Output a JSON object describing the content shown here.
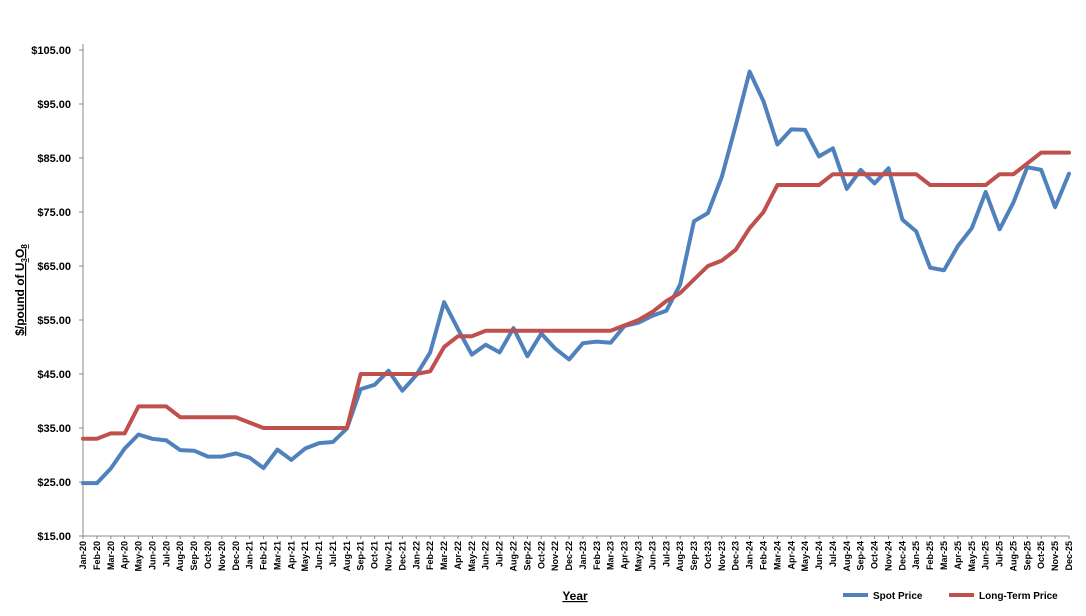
{
  "chart_data": {
    "type": "line",
    "title": "",
    "xlabel": "Year",
    "ylabel": {
      "prefix": "$/pound of U",
      "sub1": "3",
      "mid": "O",
      "sub2": "8"
    },
    "ylim": [
      15,
      105
    ],
    "ytick_values": [
      15,
      25,
      35,
      45,
      55,
      65,
      75,
      85,
      95,
      105
    ],
    "ytick_labels": [
      "$15.00",
      "$25.00",
      "$35.00",
      "$45.00",
      "$55.00",
      "$65.00",
      "$75.00",
      "$85.00",
      "$95.00",
      "$105.00"
    ],
    "grid": false,
    "legend_position": "bottom-right",
    "categories": [
      "Jan-20",
      "Feb-20",
      "Mar-20",
      "Apr-20",
      "May-20",
      "Jun-20",
      "Jul-20",
      "Aug-20",
      "Sep-20",
      "Oct-20",
      "Nov-20",
      "Dec-20",
      "Jan-21",
      "Feb-21",
      "Mar-21",
      "Apr-21",
      "May-21",
      "Jun-21",
      "Jul-21",
      "Aug-21",
      "Sep-21",
      "Oct-21",
      "Nov-21",
      "Dec-21",
      "Jan-22",
      "Feb-22",
      "Mar-22",
      "Apr-22",
      "May-22",
      "Jun-22",
      "Jul-22",
      "Aug-22",
      "Sep-22",
      "Oct-22",
      "Nov-22",
      "Dec-22",
      "Jan-23",
      "Feb-23",
      "Mar-23",
      "Apr-23",
      "May-23",
      "Jun-23",
      "Jul-23",
      "Aug-23",
      "Sep-23",
      "Oct-23",
      "Nov-23",
      "Dec-23",
      "Jan-24",
      "Feb-24",
      "Mar-24",
      "Apr-24",
      "May-24",
      "Jun-24",
      "Jul-24",
      "Aug-24",
      "Sep-24",
      "Oct-24",
      "Nov-24",
      "Dec-24",
      "Jan-25",
      "Feb-25",
      "Mar-25",
      "Apr-25",
      "May-25",
      "Jun-25",
      "Jul-25",
      "Aug-25",
      "Sep-25",
      "Oct-25",
      "Nov-25",
      "Dec-25"
    ],
    "series": [
      {
        "name": "Spot Price",
        "color": "#4f81bd",
        "values": [
          24.8,
          24.8,
          27.5,
          31.2,
          33.8,
          33,
          32.7,
          30.9,
          30.8,
          29.7,
          29.7,
          30.3,
          29.5,
          27.6,
          31,
          29.1,
          31.2,
          32.2,
          32.4,
          34.9,
          42.2,
          43,
          45.6,
          41.9,
          44.8,
          49,
          58.3,
          53.3,
          48.6,
          50.4,
          49,
          53.5,
          48.3,
          52.5,
          49.7,
          47.7,
          50.7,
          51,
          50.8,
          53.9,
          54.5,
          55.8,
          56.7,
          61.6,
          73.3,
          74.8,
          81.5,
          91,
          101,
          95.5,
          87.5,
          90.3,
          90.2,
          85.3,
          86.8,
          79.3,
          82.8,
          80.3,
          83.1,
          73.6,
          71.4,
          64.7,
          64.2,
          68.7,
          72,
          78.7,
          71.8,
          76.8,
          83.3,
          82.8,
          75.9,
          82.1
        ]
      },
      {
        "name": "Long-Term Price",
        "color": "#c0504d",
        "values": [
          33,
          33,
          34,
          34,
          39,
          39,
          39,
          37,
          37,
          37,
          37,
          37,
          36,
          35,
          35,
          35,
          35,
          35,
          35,
          35,
          45,
          45,
          45,
          45,
          45,
          45.5,
          50,
          52,
          52,
          53,
          53,
          53,
          53,
          53,
          53,
          53,
          53,
          53,
          53,
          54,
          55,
          56.5,
          58.5,
          60,
          62.5,
          65,
          66,
          68,
          72,
          75,
          80,
          80,
          80,
          80,
          82,
          82,
          82,
          82,
          82,
          82,
          82,
          80,
          80,
          80,
          80,
          80,
          82,
          82,
          84,
          86,
          86,
          86
        ]
      }
    ]
  }
}
